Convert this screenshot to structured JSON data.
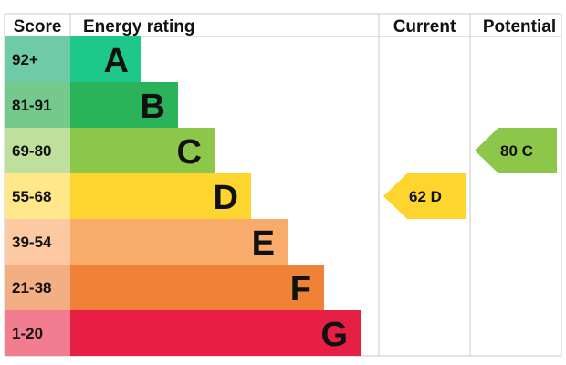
{
  "chart_data": {
    "type": "table",
    "headers": {
      "score": "Score",
      "rating": "Energy rating",
      "current": "Current",
      "potential": "Potential"
    },
    "bands": [
      {
        "score": "92+",
        "letter": "A",
        "color": "#1dc88a",
        "score_bg": "#6fcaa7"
      },
      {
        "score": "81-91",
        "letter": "B",
        "color": "#2bb35a",
        "score_bg": "#76c98d"
      },
      {
        "score": "69-80",
        "letter": "C",
        "color": "#8dc74a",
        "score_bg": "#bfe09c"
      },
      {
        "score": "55-68",
        "letter": "D",
        "color": "#fed52f",
        "score_bg": "#ffe78a"
      },
      {
        "score": "39-54",
        "letter": "E",
        "color": "#f9ab6c",
        "score_bg": "#fcc9a3"
      },
      {
        "score": "21-38",
        "letter": "F",
        "color": "#ef8236",
        "score_bg": "#f4ae84"
      },
      {
        "score": "1-20",
        "letter": "G",
        "color": "#e71f45",
        "score_bg": "#f37d90"
      }
    ],
    "current": {
      "value": 62,
      "letter": "D",
      "label": "62  D",
      "color": "#fed52f"
    },
    "potential": {
      "value": 80,
      "letter": "C",
      "label": "80  C",
      "color": "#8dc74a"
    }
  }
}
